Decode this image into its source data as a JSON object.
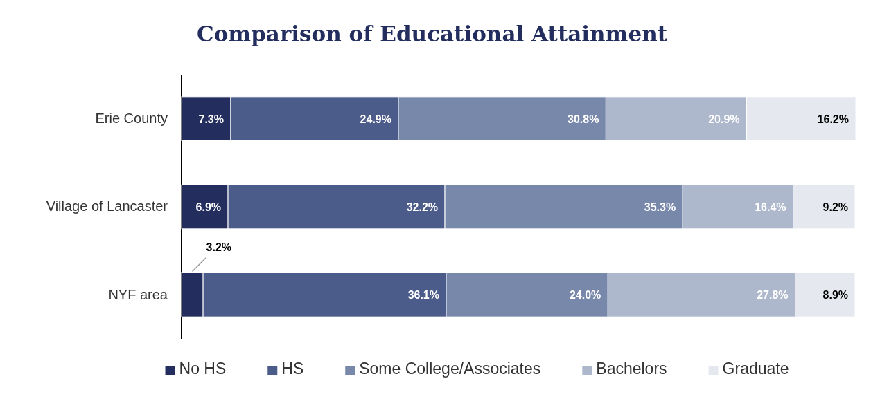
{
  "chart_data": {
    "type": "bar",
    "orientation": "horizontal",
    "stacked": true,
    "title": "Comparison of Educational Attainment",
    "categories": [
      "Erie County",
      "Village of Lancaster",
      "NYF area"
    ],
    "series": [
      {
        "name": "No HS",
        "color": "#232d5e",
        "values": [
          7.3,
          6.9,
          3.2
        ],
        "value_labels": [
          "7.3%",
          "6.9%",
          "3.2%"
        ]
      },
      {
        "name": "HS",
        "color": "#4b5b8a",
        "values": [
          24.9,
          32.2,
          36.1
        ],
        "value_labels": [
          "24.9%",
          "32.2%",
          "36.1%"
        ]
      },
      {
        "name": "Some College/Associates",
        "color": "#7888ab",
        "values": [
          30.8,
          35.3,
          24.0
        ],
        "value_labels": [
          "30.8%",
          "35.3%",
          "24.0%"
        ]
      },
      {
        "name": "Bachelors",
        "color": "#aeb8cd",
        "values": [
          20.9,
          16.4,
          27.8
        ],
        "value_labels": [
          "20.9%",
          "16.4%",
          "27.8%"
        ]
      },
      {
        "name": "Graduate",
        "color": "#e5e8ef",
        "values": [
          16.2,
          9.2,
          8.9
        ],
        "value_labels": [
          "16.2%",
          "9.2%",
          "8.9%"
        ]
      }
    ],
    "tick_labels": "y",
    "legend": "bottom"
  }
}
